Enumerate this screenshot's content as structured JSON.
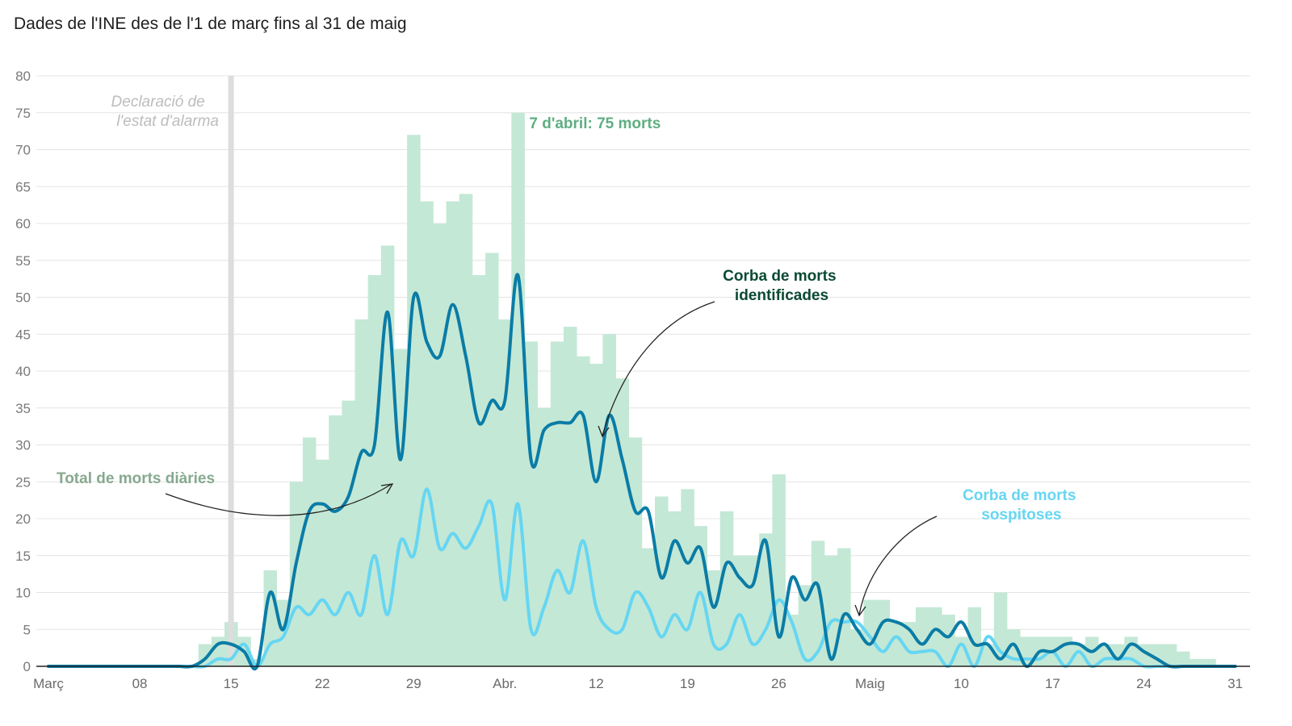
{
  "title": "Dades de l'INE des de l'1 de març fins al 31 de maig",
  "colors": {
    "bars": "#c4e8d6",
    "identified": "#0a7ca6",
    "suspected": "#66d6f2",
    "alarm_line": "#dddddd",
    "ann_total": "#86a98f",
    "ann_peak": "#5fae82",
    "ann_identified": "#0b4a33",
    "ann_suspected": "#66d6f2",
    "ann_alarm": "#bcbcbc"
  },
  "chart_data": {
    "type": "bar",
    "title": "Dades de l'INE des de l'1 de març fins al 31 de maig",
    "xlabel": "",
    "ylabel": "",
    "ylim": [
      0,
      80
    ],
    "yticks": [
      "0",
      "5",
      "10",
      "15",
      "20",
      "25",
      "30",
      "35",
      "40",
      "45",
      "50",
      "55",
      "60",
      "65",
      "70",
      "75",
      "80"
    ],
    "xticks": [
      {
        "day": 1,
        "label": "Març"
      },
      {
        "day": 8,
        "label": "08"
      },
      {
        "day": 15,
        "label": "15"
      },
      {
        "day": 22,
        "label": "22"
      },
      {
        "day": 29,
        "label": "29"
      },
      {
        "day": 36,
        "label": "Abr."
      },
      {
        "day": 43,
        "label": "12"
      },
      {
        "day": 50,
        "label": "19"
      },
      {
        "day": 57,
        "label": "26"
      },
      {
        "day": 64,
        "label": "Maig"
      },
      {
        "day": 71,
        "label": "10"
      },
      {
        "day": 78,
        "label": "17"
      },
      {
        "day": 85,
        "label": "24"
      },
      {
        "day": 92,
        "label": "31"
      }
    ],
    "grid": true,
    "days": [
      1,
      2,
      3,
      4,
      5,
      6,
      7,
      8,
      9,
      10,
      11,
      12,
      13,
      14,
      15,
      16,
      17,
      18,
      19,
      20,
      21,
      22,
      23,
      24,
      25,
      26,
      27,
      28,
      29,
      30,
      31,
      32,
      33,
      34,
      35,
      36,
      37,
      38,
      39,
      40,
      41,
      42,
      43,
      44,
      45,
      46,
      47,
      48,
      49,
      50,
      51,
      52,
      53,
      54,
      55,
      56,
      57,
      58,
      59,
      60,
      61,
      62,
      63,
      64,
      65,
      66,
      67,
      68,
      69,
      70,
      71,
      72,
      73,
      74,
      75,
      76,
      77,
      78,
      79,
      80,
      81,
      82,
      83,
      84,
      85,
      86,
      87,
      88,
      89,
      90,
      91,
      92
    ],
    "series": [
      {
        "name": "Total de morts diàries",
        "type": "bar",
        "values": [
          0,
          0,
          0,
          0,
          0,
          0,
          0,
          0,
          0,
          0,
          0,
          0,
          3,
          4,
          6,
          4,
          1,
          13,
          9,
          25,
          31,
          28,
          34,
          36,
          47,
          53,
          57,
          43,
          72,
          63,
          60,
          63,
          64,
          53,
          56,
          47,
          75,
          44,
          35,
          44,
          46,
          42,
          41,
          45,
          39,
          31,
          16,
          23,
          21,
          24,
          19,
          13,
          21,
          15,
          15,
          18,
          26,
          7,
          11,
          17,
          15,
          16,
          5,
          9,
          9,
          6,
          6,
          8,
          8,
          7,
          4,
          8,
          3,
          10,
          5,
          4,
          4,
          4,
          4,
          3,
          4,
          3,
          3,
          4,
          3,
          3,
          3,
          2,
          1,
          1,
          0,
          0
        ]
      },
      {
        "name": "Corba de morts identificades",
        "type": "line",
        "values": [
          0,
          0,
          0,
          0,
          0,
          0,
          0,
          0,
          0,
          0,
          0,
          0,
          1,
          3,
          3,
          2,
          0,
          10,
          5,
          14,
          21,
          22,
          21,
          23,
          29,
          30,
          48,
          28,
          50,
          44,
          42,
          49,
          42,
          33,
          36,
          36,
          53,
          28,
          32,
          33,
          33,
          34,
          25,
          34,
          28,
          21,
          21,
          12,
          17,
          14,
          16,
          8,
          14,
          12,
          11,
          17,
          4,
          12,
          9,
          11,
          1,
          7,
          5,
          3,
          6,
          6,
          5,
          3,
          5,
          4,
          6,
          3,
          3,
          1,
          3,
          0,
          2,
          2,
          3,
          3,
          2,
          3,
          1,
          3,
          2,
          1,
          0,
          0,
          0,
          0,
          0,
          0
        ]
      },
      {
        "name": "Corba de morts sospitoses",
        "type": "line",
        "values": [
          0,
          0,
          0,
          0,
          0,
          0,
          0,
          0,
          0,
          0,
          0,
          0,
          0,
          1,
          1,
          3,
          0,
          3,
          4,
          8,
          7,
          9,
          7,
          10,
          7,
          15,
          7,
          17,
          15,
          24,
          16,
          18,
          16,
          19,
          22,
          9,
          22,
          5,
          8,
          13,
          10,
          17,
          8,
          5,
          5,
          10,
          8,
          4,
          7,
          5,
          10,
          3,
          3,
          7,
          3,
          5,
          9,
          6,
          1,
          2,
          6,
          6,
          6,
          4,
          2,
          4,
          2,
          2,
          2,
          0,
          3,
          0,
          4,
          2,
          1,
          1,
          1,
          2,
          0,
          2,
          0,
          1,
          1,
          1,
          0,
          0,
          0,
          0,
          0,
          0,
          0,
          0
        ]
      }
    ],
    "annotations": [
      {
        "id": "alarm",
        "line1": "Declaració de",
        "line2": "l'estat d'alarma",
        "day": 15
      },
      {
        "id": "peak",
        "text": "7 d'abril: 75 morts",
        "day": 37,
        "value": 75
      },
      {
        "id": "total",
        "text": "Total de morts diàries"
      },
      {
        "id": "identified",
        "line1": "Corba de morts",
        "line2": "identificades"
      },
      {
        "id": "suspected",
        "line1": "Corba de morts",
        "line2": "sospitoses"
      }
    ]
  }
}
